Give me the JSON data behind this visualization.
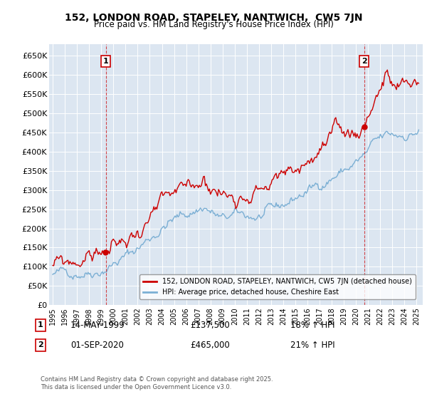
{
  "title": "152, LONDON ROAD, STAPELEY, NANTWICH,  CW5 7JN",
  "subtitle": "Price paid vs. HM Land Registry's House Price Index (HPI)",
  "ylabel_ticks": [
    "£0",
    "£50K",
    "£100K",
    "£150K",
    "£200K",
    "£250K",
    "£300K",
    "£350K",
    "£400K",
    "£450K",
    "£500K",
    "£550K",
    "£600K",
    "£650K"
  ],
  "ytick_values": [
    0,
    50000,
    100000,
    150000,
    200000,
    250000,
    300000,
    350000,
    400000,
    450000,
    500000,
    550000,
    600000,
    650000
  ],
  "ylim": [
    0,
    680000
  ],
  "xlim_start": 1994.7,
  "xlim_end": 2025.5,
  "background_color": "#dce6f1",
  "plot_bg_color": "#dce6f1",
  "grid_color": "#ffffff",
  "red_line_color": "#cc0000",
  "blue_line_color": "#7bafd4",
  "marker1_date": 1999.37,
  "marker2_date": 2020.67,
  "marker1_price": 137500,
  "marker2_price": 465000,
  "legend_label1": "152, LONDON ROAD, STAPELEY, NANTWICH, CW5 7JN (detached house)",
  "legend_label2": "HPI: Average price, detached house, Cheshire East",
  "annot1_date": "14-MAY-1999",
  "annot1_price": "£137,500",
  "annot1_hpi": "18% ↑ HPI",
  "annot2_date": "01-SEP-2020",
  "annot2_price": "£465,000",
  "annot2_hpi": "21% ↑ HPI",
  "copyright_text": "Contains HM Land Registry data © Crown copyright and database right 2025.\nThis data is licensed under the Open Government Licence v3.0.",
  "xticks": [
    1995,
    1996,
    1997,
    1998,
    1999,
    2000,
    2001,
    2002,
    2003,
    2004,
    2005,
    2006,
    2007,
    2008,
    2009,
    2010,
    2011,
    2012,
    2013,
    2014,
    2015,
    2016,
    2017,
    2018,
    2019,
    2020,
    2021,
    2022,
    2023,
    2024,
    2025
  ],
  "marker1_dot_color": "#cc0000",
  "marker2_dot_color": "#cc0000"
}
